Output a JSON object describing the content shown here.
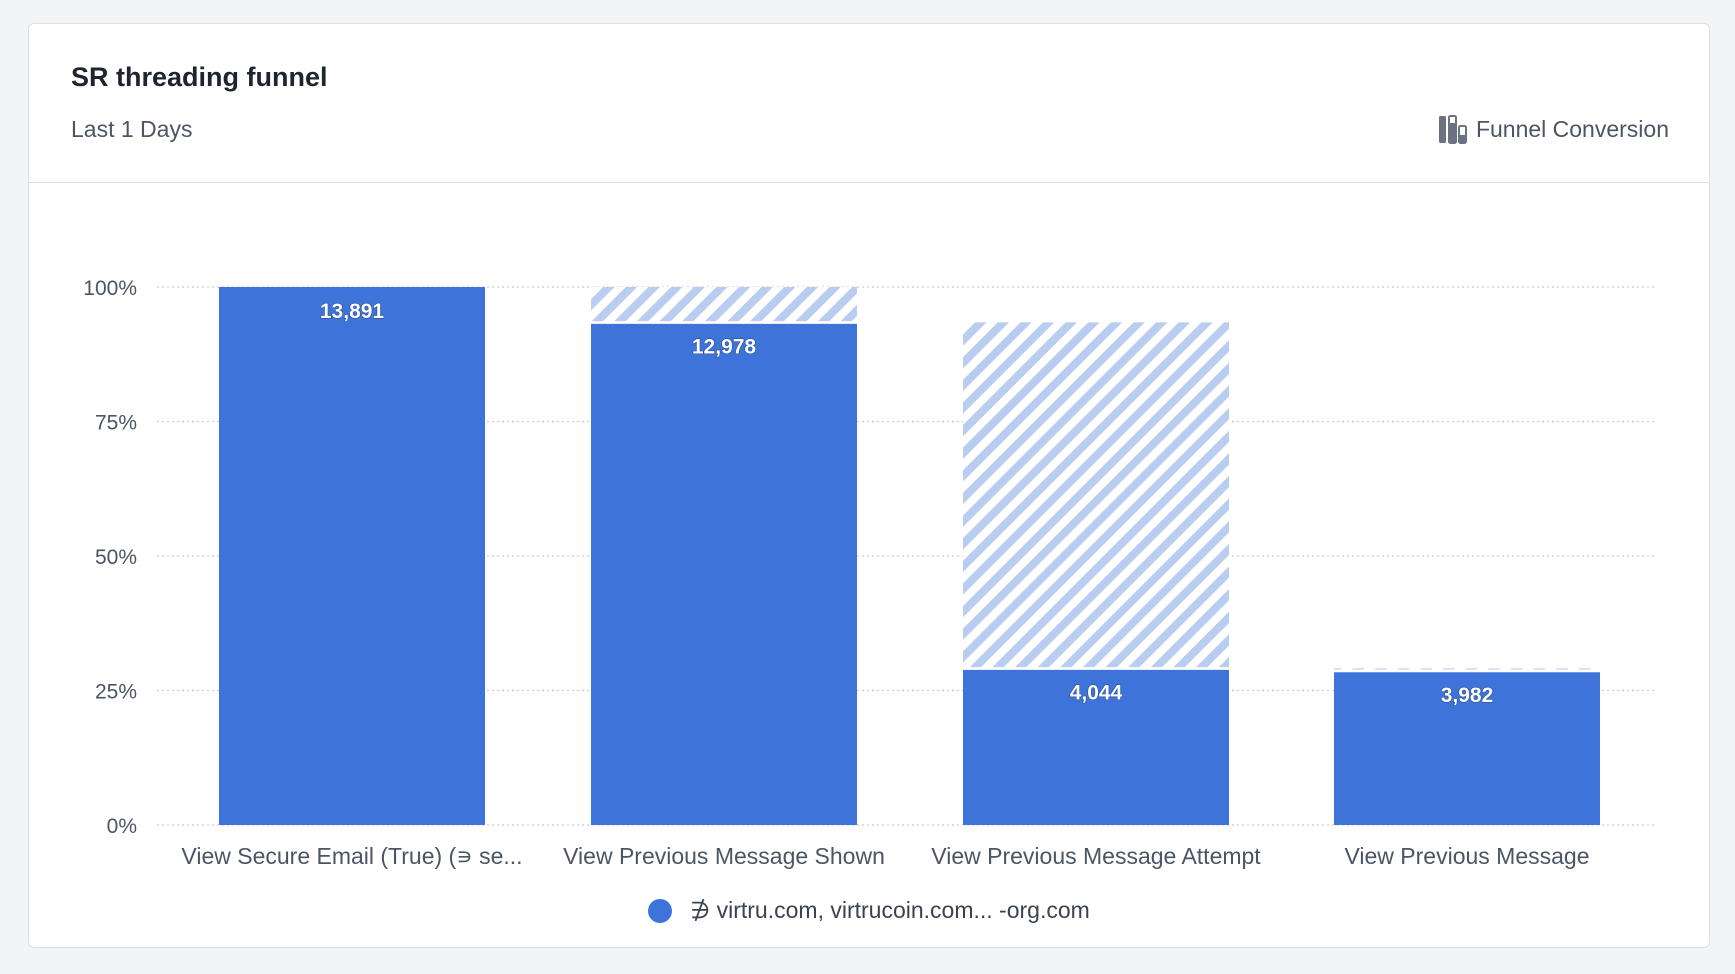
{
  "card": {
    "title": "SR threading funnel",
    "subtitle": "Last 1 Days",
    "chart_type_label": "Funnel Conversion",
    "chart_type_icon": "funnel-bars-icon"
  },
  "legend": {
    "label": "∌ virtru.com, virtrucoin.com... -org.com",
    "color": "#3e74d9"
  },
  "colors": {
    "bar": "#3e74d9",
    "dropoff_stripe": "#b9cdf1",
    "dropoff_bg": "#ffffff",
    "grid": "#c9ccd2",
    "axis_text": "#4b5563"
  },
  "chart_data": {
    "type": "bar",
    "title": "SR threading funnel",
    "categories": [
      "View Secure Email (True) (∍ se...",
      "View Previous Message Shown",
      "View Previous Message Attempt",
      "View Previous Message"
    ],
    "series": [
      {
        "name": "∌ virtru.com, virtrucoin.com... -org.com",
        "counts": [
          13891,
          12978,
          4044,
          3982
        ],
        "count_labels": [
          "13,891",
          "12,978",
          "4,044",
          "3,982"
        ]
      }
    ],
    "ylim": [
      0,
      100
    ],
    "yticks": [
      0,
      25,
      50,
      75,
      100
    ],
    "ytick_labels": [
      "0%",
      "25%",
      "50%",
      "75%",
      "100%"
    ],
    "grid": true,
    "legend_position": "bottom-center"
  }
}
